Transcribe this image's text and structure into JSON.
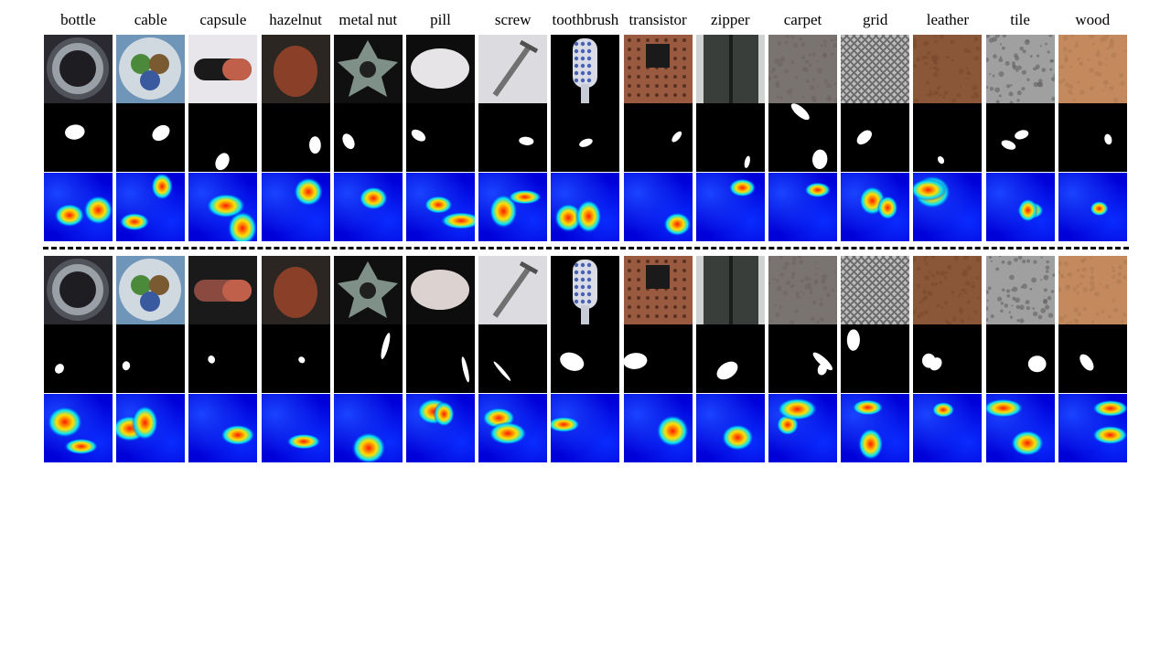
{
  "categories": [
    "bottle",
    "cable",
    "capsule",
    "hazelnut",
    "metal  nut",
    "pill",
    "screw",
    "toothbrush",
    "transistor",
    "zipper",
    "carpet",
    "grid",
    "leather",
    "tile",
    "wood"
  ],
  "colors": {
    "background": "#ffffff",
    "mask_background": "#000000",
    "mask_foreground": "#ffffff",
    "heatmap_low": "#0000d8",
    "heatmap_mid": "#00e0ff",
    "heatmap_high": "#ff1a00"
  },
  "rows": [
    "input-image",
    "ground-truth-mask",
    "anomaly-heatmap"
  ],
  "groups": [
    {
      "name": "group-1",
      "samples": [
        {
          "bg": "#2a2a30",
          "fg": "#9aa0a8",
          "shape": "ring"
        },
        {
          "bg": "#6f95b8",
          "fg": "#3a5aa0",
          "shape": "cable"
        },
        {
          "bg": "#e8e6ea",
          "fg": "#1a1a1a",
          "shape": "capsule"
        },
        {
          "bg": "#2b2622",
          "fg": "#8a4028",
          "shape": "nut"
        },
        {
          "bg": "#101010",
          "fg": "#7f9088",
          "shape": "star"
        },
        {
          "bg": "#0d0d0d",
          "fg": "#e6e4e6",
          "shape": "pill"
        },
        {
          "bg": "#dcdce0",
          "fg": "#707070",
          "shape": "screw"
        },
        {
          "bg": "#000000",
          "fg": "#d8dce6",
          "shape": "brush"
        },
        {
          "bg": "#9a5a40",
          "fg": "#1a1a1a",
          "shape": "transistor"
        },
        {
          "bg": "#cfd2d0",
          "fg": "#2a2e2a",
          "shape": "zipper"
        },
        {
          "bg": "#7a7470",
          "fg": "#6a6460",
          "shape": "texture"
        },
        {
          "bg": "#bdbdbd",
          "fg": "#6d6d6d",
          "shape": "grid"
        },
        {
          "bg": "#8a5838",
          "fg": "#7a4a2e",
          "shape": "texture"
        },
        {
          "bg": "#a0a0a0",
          "fg": "#606060",
          "shape": "texture"
        },
        {
          "bg": "#c48a5e",
          "fg": "#b07a50",
          "shape": "texture"
        }
      ]
    },
    {
      "name": "group-2",
      "samples": [
        {
          "bg": "#2a2a30",
          "fg": "#9aa0a8",
          "shape": "ring"
        },
        {
          "bg": "#6f95b8",
          "fg": "#3a5aa0",
          "shape": "cable"
        },
        {
          "bg": "#1a1a1a",
          "fg": "#8a4a40",
          "shape": "capsule"
        },
        {
          "bg": "#2b2622",
          "fg": "#8a4028",
          "shape": "nut"
        },
        {
          "bg": "#101010",
          "fg": "#7f9088",
          "shape": "star"
        },
        {
          "bg": "#0d0d0d",
          "fg": "#dcd2d0",
          "shape": "pill"
        },
        {
          "bg": "#dcdce0",
          "fg": "#707070",
          "shape": "screw"
        },
        {
          "bg": "#000000",
          "fg": "#d8dce6",
          "shape": "brush"
        },
        {
          "bg": "#9a5a40",
          "fg": "#1a1a1a",
          "shape": "transistor"
        },
        {
          "bg": "#cfd2d0",
          "fg": "#2a2e2a",
          "shape": "zipper"
        },
        {
          "bg": "#7a7470",
          "fg": "#6a6460",
          "shape": "texture"
        },
        {
          "bg": "#bdbdbd",
          "fg": "#6d6d6d",
          "shape": "grid"
        },
        {
          "bg": "#8a5838",
          "fg": "#7a4a2e",
          "shape": "texture"
        },
        {
          "bg": "#a0a0a0",
          "fg": "#606060",
          "shape": "texture"
        },
        {
          "bg": "#c48a5e",
          "fg": "#b07a50",
          "shape": "texture"
        }
      ]
    }
  ]
}
